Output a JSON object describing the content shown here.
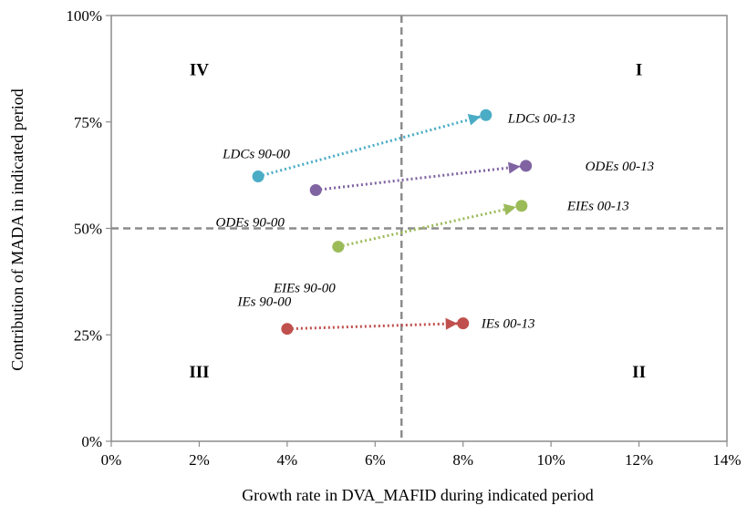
{
  "chart_data": {
    "type": "scatter",
    "title": "",
    "xlabel": "Growth rate in DVA_MAFID during indicated period",
    "ylabel": "Contribution of MADA in indicated period",
    "xlim": [
      0,
      0.14
    ],
    "ylim": [
      0,
      1.0
    ],
    "x_ticks": [
      0,
      0.02,
      0.04,
      0.06,
      0.08,
      0.1,
      0.12,
      0.14
    ],
    "x_tick_labels": [
      "0%",
      "2%",
      "4%",
      "6%",
      "8%",
      "10%",
      "12%",
      "14%"
    ],
    "y_ticks": [
      0,
      0.25,
      0.5,
      0.75,
      1.0
    ],
    "y_tick_labels": [
      "0%",
      "25%",
      "50%",
      "75%",
      "100%"
    ],
    "grid": false,
    "reference_lines": {
      "x": 0.066,
      "y": 0.5
    },
    "quadrant_labels": [
      {
        "text": "IV",
        "x": 0.02,
        "y": 0.86
      },
      {
        "text": "I",
        "x": 0.12,
        "y": 0.86
      },
      {
        "text": "III",
        "x": 0.02,
        "y": 0.15
      },
      {
        "text": "II",
        "x": 0.12,
        "y": 0.15
      }
    ],
    "series": [
      {
        "color": "#4bacc6",
        "from": {
          "x": 0.0334,
          "y": 0.622,
          "label": "LDCs 90-00"
        },
        "to": {
          "x": 0.0852,
          "y": 0.766,
          "label": "LDCs 00-13"
        }
      },
      {
        "color": "#8064a2",
        "from": {
          "x": 0.0465,
          "y": 0.59,
          "label": "ODEs 90-00"
        },
        "to": {
          "x": 0.0943,
          "y": 0.647,
          "label": "ODEs 00-13"
        }
      },
      {
        "color": "#9bbb59",
        "from": {
          "x": 0.0516,
          "y": 0.457,
          "label": "EIEs 90-00"
        },
        "to": {
          "x": 0.0933,
          "y": 0.553,
          "label": "EIEs 00-13"
        }
      },
      {
        "color": "#c0504d",
        "from": {
          "x": 0.04,
          "y": 0.264,
          "label": "IEs 90-00"
        },
        "to": {
          "x": 0.08,
          "y": 0.277,
          "label": "IEs 00-13"
        }
      }
    ]
  }
}
